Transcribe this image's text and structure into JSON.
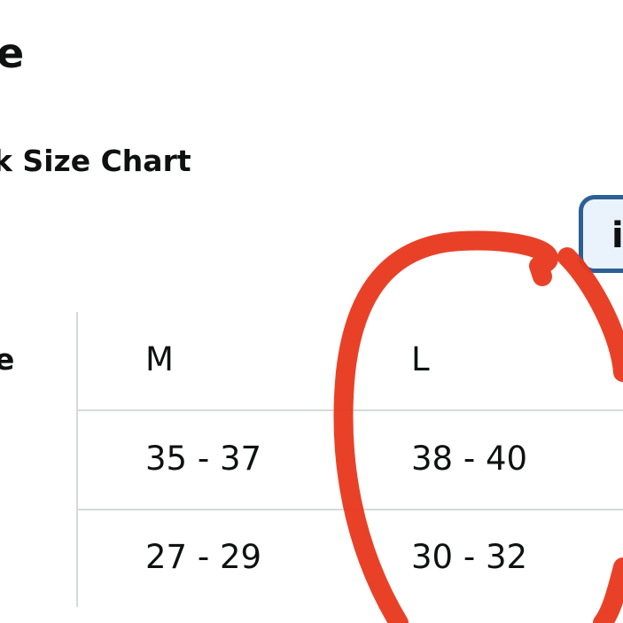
{
  "header": {
    "title_fragment": "e",
    "subtitle_fragment": "k Size Chart"
  },
  "info_badge": {
    "label": "i",
    "icon": "info-icon",
    "border_color": "#2b5f96"
  },
  "table": {
    "row_header_fragment": "e",
    "columns": [
      "M",
      "L"
    ],
    "rows": [
      [
        "35 - 37",
        "38 - 40"
      ],
      [
        "27 - 29",
        "30 - 32"
      ]
    ]
  },
  "annotation": {
    "type": "hand-drawn circle around L column",
    "color": "#e8371c"
  }
}
